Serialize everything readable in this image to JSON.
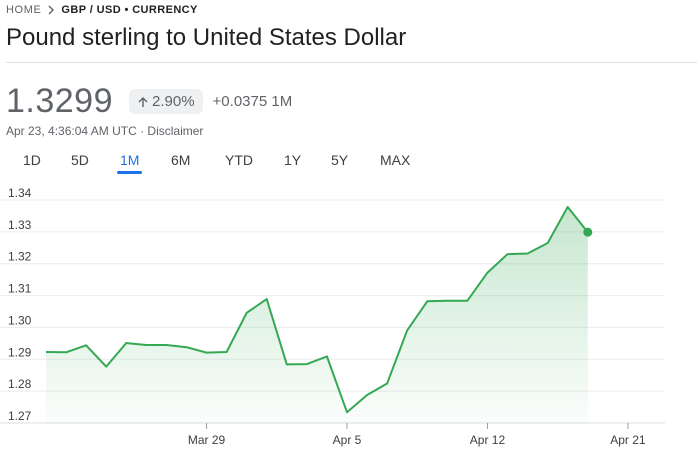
{
  "breadcrumb": {
    "home": "HOME",
    "current": "GBP / USD • CURRENCY"
  },
  "title": "Pound sterling to United States Dollar",
  "price": "1.3299",
  "change_pct": "2.90%",
  "change_abs": "+0.0375 1M",
  "timestamp": "Apr 23, 4:36:04 AM UTC",
  "disclaimer": "Disclaimer",
  "tabs": [
    {
      "label": "1D",
      "active": false
    },
    {
      "label": "5D",
      "active": false
    },
    {
      "label": "1M",
      "active": true
    },
    {
      "label": "6M",
      "active": false
    },
    {
      "label": "YTD",
      "active": false
    },
    {
      "label": "1Y",
      "active": false
    },
    {
      "label": "5Y",
      "active": false
    },
    {
      "label": "MAX",
      "active": false
    }
  ],
  "colors": {
    "line": "#34a853",
    "active_tab": "#1a73e8"
  },
  "icons": {
    "breadcrumb_separator": "chevron-right-icon",
    "change_arrow": "arrow-up-icon"
  },
  "chart_data": {
    "type": "area",
    "ylim": [
      1.27,
      1.34
    ],
    "yticks": [
      "1.34",
      "1.33",
      "1.32",
      "1.31",
      "1.30",
      "1.29",
      "1.28",
      "1.27"
    ],
    "xticks": [
      {
        "label": "Mar 29",
        "x": 7
      },
      {
        "label": "Apr 5",
        "x": 14
      },
      {
        "label": "Apr 12",
        "x": 21
      },
      {
        "label": "Apr 21",
        "x": 28
      }
    ],
    "xlim": [
      -1,
      29.25
    ],
    "series": [
      {
        "x": [
          -1,
          0,
          1,
          2,
          3,
          4,
          5,
          6,
          7,
          8,
          9,
          10,
          11,
          12,
          13,
          14,
          15,
          16,
          17,
          18,
          19,
          20,
          21,
          22,
          23,
          24,
          25,
          26,
          27,
          28,
          29
        ],
        "y": [
          1.2923,
          1.2922,
          1.2944,
          1.2877,
          1.2951,
          1.2945,
          1.2945,
          1.2938,
          1.2921,
          1.2923,
          1.3046,
          1.3089,
          1.2884,
          1.2885,
          1.2909,
          1.2734,
          1.2788,
          1.2824,
          1.2991,
          1.3082,
          1.3084,
          1.3084,
          1.3172,
          1.323,
          1.3232,
          1.3265,
          1.3378,
          1.3299,
          null,
          null,
          null
        ]
      }
    ]
  }
}
